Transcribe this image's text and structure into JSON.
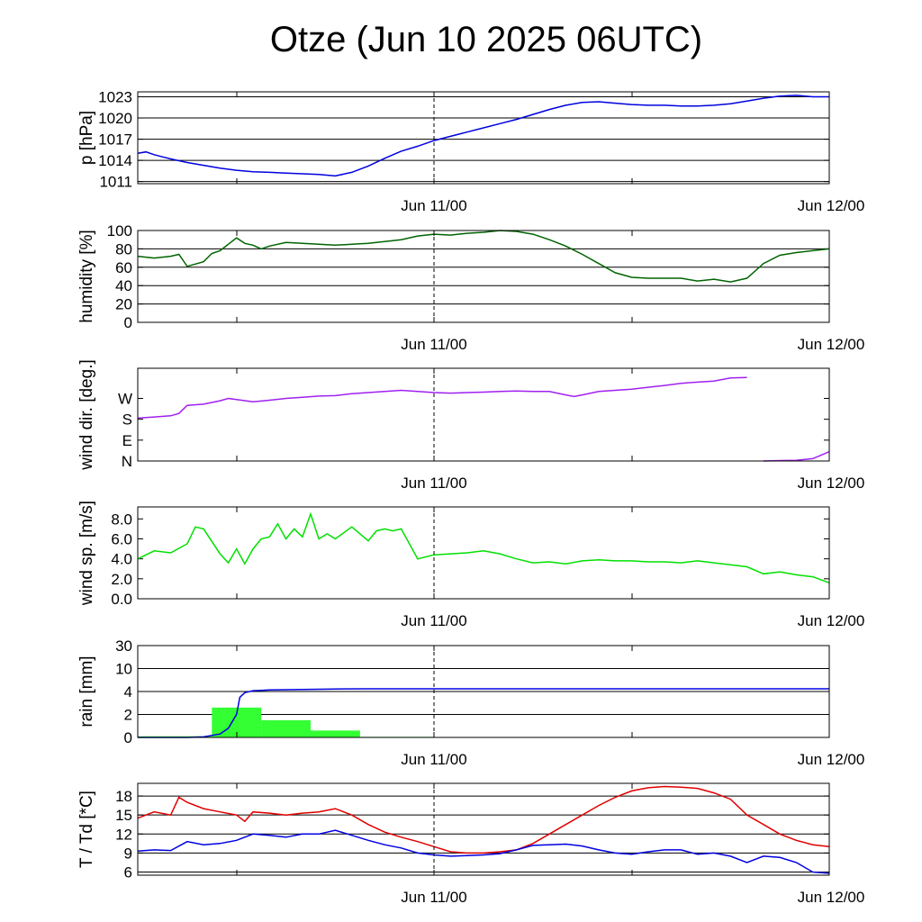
{
  "title": "Otze (Jun 10 2025 06UTC)",
  "x_tick_labels": [
    "Jun 11/00",
    "Jun 12/00"
  ],
  "chart_data": [
    {
      "type": "line",
      "ylabel": "p [hPa]",
      "ylim": [
        1010.7,
        1023.7
      ],
      "yticks": [
        1011,
        1014,
        1017,
        1020,
        1023
      ],
      "grid": true,
      "x_unit": "hours since Jun 10 06UTC",
      "xlim": [
        0,
        42
      ],
      "series": [
        {
          "color": "#0000e0",
          "x": [
            0,
            0.5,
            1,
            1.5,
            2,
            3,
            4,
            5,
            6,
            7,
            8,
            9,
            10,
            11,
            12,
            13,
            14,
            15,
            16,
            17,
            18,
            19,
            20,
            21,
            22,
            23,
            24,
            25,
            26,
            27,
            28,
            29,
            30,
            31,
            32,
            33,
            34,
            35,
            36,
            37,
            38,
            39,
            40,
            41,
            42
          ],
          "y": [
            1015,
            1015.2,
            1014.8,
            1014.5,
            1014.2,
            1013.7,
            1013.3,
            1012.9,
            1012.6,
            1012.4,
            1012.3,
            1012.2,
            1012.1,
            1012.0,
            1011.8,
            1012.3,
            1013.2,
            1014.3,
            1015.3,
            1016.0,
            1016.8,
            1017.4,
            1018.0,
            1018.6,
            1019.2,
            1019.8,
            1020.5,
            1021.2,
            1021.8,
            1022.2,
            1022.3,
            1022.1,
            1021.9,
            1021.8,
            1021.8,
            1021.7,
            1021.7,
            1021.8,
            1022.0,
            1022.4,
            1022.8,
            1023.1,
            1023.2,
            1023.0,
            1023.0
          ]
        }
      ]
    },
    {
      "type": "line",
      "ylabel": "humidity [%]",
      "ylim": [
        0,
        100
      ],
      "yticks": [
        0,
        20,
        40,
        60,
        80,
        100
      ],
      "grid": true,
      "xlim": [
        0,
        42
      ],
      "series": [
        {
          "color": "#006400",
          "x": [
            0,
            1,
            2,
            2.5,
            3,
            4,
            4.5,
            5,
            6,
            6.5,
            7,
            7.5,
            8,
            9,
            10,
            11,
            12,
            13,
            14,
            15,
            16,
            17,
            18,
            19,
            20,
            21,
            22,
            23,
            24,
            25,
            26,
            27,
            28,
            29,
            30,
            31,
            32,
            33,
            34,
            35,
            36,
            37,
            38,
            39,
            40,
            41,
            42
          ],
          "y": [
            72,
            70,
            72,
            74,
            61,
            66,
            75,
            78,
            92,
            86,
            84,
            80,
            83,
            87,
            86,
            85,
            84,
            85,
            86,
            88,
            90,
            94,
            96,
            95,
            97,
            98,
            100,
            99,
            96,
            90,
            83,
            74,
            64,
            54,
            49,
            48,
            48,
            48,
            45,
            47,
            44,
            48,
            64,
            73,
            76,
            78,
            80
          ]
        }
      ]
    },
    {
      "type": "line",
      "ylabel": "wind dir. [deg.]",
      "ylim": [
        0,
        400
      ],
      "yticks": [
        0,
        90,
        180,
        270
      ],
      "ytick_labels": [
        "N",
        "E",
        "S",
        "W"
      ],
      "grid": false,
      "xlim": [
        0,
        42
      ],
      "series": [
        {
          "color": "#a020f0",
          "x": [
            0,
            1,
            2,
            2.5,
            3,
            4,
            5,
            5.5,
            6,
            7,
            8,
            9,
            10,
            11,
            12,
            13,
            14,
            15,
            16,
            17,
            18,
            19,
            20,
            21,
            22,
            23,
            24,
            25,
            26,
            26.5,
            27,
            28,
            29,
            30,
            31,
            32,
            33,
            34,
            35,
            36,
            37
          ],
          "y": [
            185,
            190,
            195,
            205,
            240,
            245,
            260,
            270,
            265,
            255,
            262,
            270,
            275,
            280,
            282,
            290,
            295,
            300,
            305,
            300,
            295,
            293,
            295,
            297,
            300,
            302,
            300,
            300,
            285,
            278,
            285,
            300,
            305,
            310,
            318,
            326,
            335,
            340,
            345,
            358,
            360
          ]
        },
        {
          "color": "#a020f0",
          "x": [
            38,
            39,
            40,
            41,
            42
          ],
          "y": [
            0,
            2,
            3,
            10,
            40
          ]
        }
      ]
    },
    {
      "type": "line",
      "ylabel": "wind sp. [m/s]",
      "ylim": [
        0,
        9.2
      ],
      "yticks": [
        0.0,
        2.0,
        4.0,
        6.0,
        8.0
      ],
      "ytick_labels": [
        "0.0",
        "2.0",
        "4.0",
        "6.0",
        "8.0"
      ],
      "grid": false,
      "xlim": [
        0,
        42
      ],
      "series": [
        {
          "color": "#00e000",
          "x": [
            0,
            1,
            2,
            3,
            3.5,
            4,
            5,
            5.5,
            6,
            6.5,
            7,
            7.5,
            8,
            8.5,
            9,
            9.5,
            10,
            10.5,
            11,
            11.5,
            12,
            13,
            14,
            14.5,
            15,
            15.5,
            16,
            17,
            18,
            19,
            20,
            21,
            22,
            23,
            24,
            25,
            26,
            27,
            28,
            29,
            30,
            31,
            32,
            33,
            34,
            35,
            36,
            37,
            38,
            39,
            40,
            41,
            42
          ],
          "y": [
            4.0,
            4.8,
            4.6,
            5.5,
            7.2,
            7.0,
            4.5,
            3.6,
            5.0,
            3.5,
            5.0,
            6.0,
            6.2,
            7.5,
            6.0,
            7.0,
            6.2,
            8.5,
            6.0,
            6.5,
            6.0,
            7.2,
            5.8,
            6.8,
            7.0,
            6.8,
            7.0,
            4.0,
            4.4,
            4.5,
            4.6,
            4.8,
            4.5,
            4.0,
            3.6,
            3.7,
            3.5,
            3.8,
            3.9,
            3.8,
            3.8,
            3.7,
            3.7,
            3.6,
            3.8,
            3.6,
            3.4,
            3.2,
            2.5,
            2.7,
            2.4,
            2.2,
            1.6
          ]
        }
      ]
    },
    {
      "type": "bar",
      "ylabel": "rain [mm]",
      "ylim": [
        0,
        30
      ],
      "yticks": [
        0,
        2,
        4,
        10,
        30
      ],
      "grid": true,
      "xlim": [
        0,
        42
      ],
      "bars": [
        {
          "x0": 0,
          "x1": 4.5,
          "value": 0.1
        },
        {
          "x0": 4.5,
          "x1": 7.5,
          "value": 2.6
        },
        {
          "x0": 7.5,
          "x1": 10.5,
          "value": 1.5
        },
        {
          "x0": 10.5,
          "x1": 13.5,
          "value": 0.6
        },
        {
          "x0": 13.5,
          "x1": 18,
          "value": 0.05
        }
      ],
      "series": [
        {
          "color": "#0000e0",
          "x": [
            0,
            3,
            4,
            5,
            5.5,
            6,
            6.2,
            6.5,
            7,
            7.5,
            8,
            10,
            12,
            14,
            16,
            18,
            20,
            24,
            28,
            32,
            36,
            40,
            42
          ],
          "y": [
            0,
            0,
            0.05,
            0.3,
            0.8,
            2.0,
            3.5,
            3.9,
            4.2,
            4.3,
            4.4,
            4.55,
            4.65,
            4.7,
            4.7,
            4.7,
            4.7,
            4.7,
            4.7,
            4.7,
            4.7,
            4.7,
            4.7
          ]
        }
      ],
      "bar_color": "#33ff33"
    },
    {
      "type": "line",
      "ylabel": "T / Td [*C]",
      "ylim": [
        5.5,
        20
      ],
      "yticks": [
        6,
        9,
        12,
        15,
        18
      ],
      "grid": true,
      "xlim": [
        0,
        42
      ],
      "series": [
        {
          "color": "#e00000",
          "x": [
            0,
            1,
            2,
            2.5,
            3,
            4,
            5,
            6,
            6.5,
            7,
            8,
            9,
            10,
            11,
            12,
            13,
            14,
            15,
            16,
            17,
            18,
            19,
            20,
            21,
            22,
            23,
            24,
            25,
            26,
            27,
            28,
            29,
            30,
            31,
            32,
            33,
            34,
            35,
            36,
            37,
            38,
            39,
            40,
            41,
            42
          ],
          "y": [
            14.5,
            15.5,
            15.0,
            17.8,
            17.0,
            16.0,
            15.5,
            15.0,
            14.0,
            15.5,
            15.3,
            15.0,
            15.3,
            15.5,
            16.0,
            15.0,
            13.5,
            12.3,
            11.5,
            10.8,
            10.0,
            9.2,
            9.0,
            9.0,
            9.2,
            9.5,
            10.5,
            12.0,
            13.5,
            15.0,
            16.5,
            17.8,
            18.8,
            19.3,
            19.5,
            19.4,
            19.2,
            18.5,
            17.5,
            15.0,
            13.5,
            12.0,
            11.0,
            10.3,
            10.0
          ]
        },
        {
          "color": "#0000e0",
          "x": [
            0,
            1,
            2,
            3,
            4,
            5,
            6,
            7,
            8,
            9,
            10,
            11,
            12,
            13,
            14,
            15,
            16,
            17,
            18,
            19,
            20,
            21,
            22,
            23,
            24,
            25,
            26,
            27,
            28,
            29,
            30,
            31,
            32,
            33,
            34,
            35,
            36,
            37,
            38,
            39,
            40,
            41,
            42
          ],
          "y": [
            9.3,
            9.5,
            9.4,
            10.8,
            10.3,
            10.5,
            11.0,
            12.0,
            11.8,
            11.5,
            12.0,
            12.0,
            12.6,
            11.8,
            11.0,
            10.3,
            9.8,
            9.0,
            8.7,
            8.5,
            8.6,
            8.7,
            8.9,
            9.5,
            10.2,
            10.3,
            10.4,
            10.1,
            9.5,
            9.0,
            8.8,
            9.2,
            9.5,
            9.5,
            8.8,
            9.0,
            8.5,
            7.5,
            8.5,
            8.3,
            7.5,
            6.0,
            5.8
          ]
        }
      ]
    }
  ]
}
